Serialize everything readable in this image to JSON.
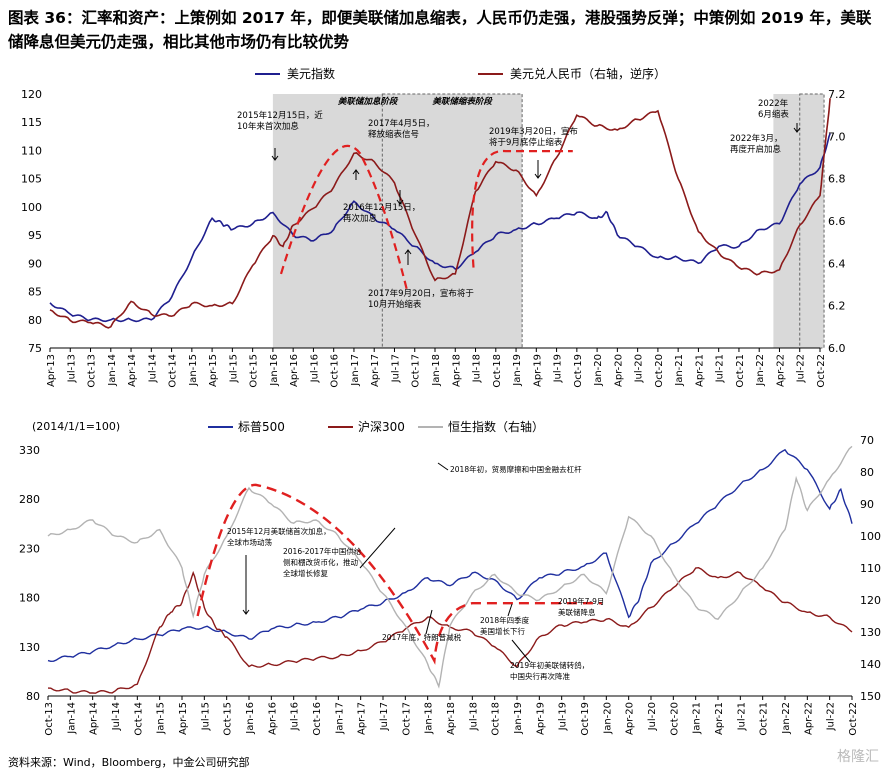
{
  "title": "图表 36：汇率和资产：上策例如 2017 年，即便美联储加息缩表，人民币仍走强，港股强势反弹；中策例如 2019 年，美联储降息但美元仍走强，相比其他市场仍有比较优势",
  "source": "资料来源：Wind，Bloomberg，中金公司研究部",
  "watermark": "格隆汇",
  "colors": {
    "usd": "#1f1f8f",
    "cny": "#8b1a1a",
    "spx": "#1f2f9f",
    "csi": "#8b1a1a",
    "hsi": "#b3b3b3",
    "dash": "#e02020",
    "shade": "#d9d9d9"
  },
  "chart_data": [
    {
      "type": "line",
      "legend": [
        "美元指数",
        "美元兑人民币（右轴，逆序）"
      ],
      "x_ticks": [
        "Apr-13",
        "Jul-13",
        "Oct-13",
        "Jan-14",
        "Apr-14",
        "Jul-14",
        "Oct-14",
        "Jan-15",
        "Apr-15",
        "Jul-15",
        "Oct-15",
        "Jan-16",
        "Apr-16",
        "Jul-16",
        "Oct-16",
        "Jan-17",
        "Apr-17",
        "Jul-17",
        "Oct-17",
        "Jan-18",
        "Apr-18",
        "Jul-18",
        "Oct-18",
        "Jan-19",
        "Apr-19",
        "Jul-19",
        "Oct-19",
        "Jan-20",
        "Apr-20",
        "Jul-20",
        "Oct-20",
        "Jan-21",
        "Apr-21",
        "Jul-21",
        "Oct-21",
        "Jan-22",
        "Apr-22",
        "Jul-22",
        "Oct-22"
      ],
      "ylim_left": [
        75,
        120
      ],
      "ylim_right": [
        7.2,
        6.0
      ],
      "y_ticks_left": [
        "120",
        "115",
        "110",
        "105",
        "100",
        "95",
        "90",
        "85",
        "80",
        "75"
      ],
      "y_ticks_right": [
        "6.0",
        "6.2",
        "6.4",
        "6.6",
        "6.8",
        "7.0",
        "7.2"
      ],
      "shade_labels": [
        "美联储加息阶段",
        "美联储缩表阶段"
      ],
      "annotations": [
        "2015年12月15日，近10年来首次加息",
        "2017年4月5日，释放缩表信号",
        "2016年12月15日，再次加息",
        "2017年9月20日，宣布将于10月开始缩表",
        "2019年3月20日，宣布将于9月底停止缩表",
        "2022年6月缩表",
        "2022年3月，再度开启加息"
      ],
      "series": [
        {
          "name": "美元指数",
          "axis": "left",
          "x": [
            0,
            1,
            2,
            3,
            4,
            5,
            6,
            7,
            8,
            8.5,
            9,
            10,
            11,
            12,
            13,
            14,
            15,
            16,
            17,
            18,
            19,
            20,
            21,
            22,
            23,
            24,
            25,
            26,
            27,
            27.5,
            28,
            29,
            30,
            31,
            32,
            33,
            34,
            35,
            36,
            37,
            38,
            38.5
          ],
          "values": [
            83,
            81,
            80,
            80,
            80,
            80,
            84,
            91,
            98,
            97,
            96,
            97,
            99,
            95,
            94,
            96,
            101,
            98,
            96,
            93,
            90,
            89,
            92,
            95,
            96,
            97,
            98,
            99,
            98,
            99,
            95,
            93,
            91,
            91,
            90,
            93,
            93,
            96,
            97,
            104,
            107,
            113
          ]
        },
        {
          "name": "美元兑人民币（右轴，逆序）",
          "axis": "right",
          "x": [
            0,
            1,
            2,
            3,
            4,
            5,
            6,
            7,
            8,
            9,
            10,
            11,
            11.5,
            12,
            13,
            14,
            15,
            16,
            17,
            18,
            19,
            20,
            21,
            22,
            23,
            24,
            25,
            26,
            27,
            28,
            29,
            30,
            31,
            32,
            33,
            34,
            35,
            36,
            37,
            38,
            38.5
          ],
          "values": [
            6.18,
            6.13,
            6.12,
            6.1,
            6.22,
            6.16,
            6.15,
            6.21,
            6.2,
            6.21,
            6.39,
            6.53,
            6.48,
            6.58,
            6.66,
            6.76,
            6.92,
            6.88,
            6.78,
            6.54,
            6.32,
            6.35,
            6.74,
            6.88,
            6.84,
            6.72,
            6.9,
            7.1,
            7.05,
            7.03,
            7.08,
            7.12,
            6.8,
            6.55,
            6.45,
            6.38,
            6.35,
            6.37,
            6.58,
            6.72,
            7.18
          ]
        }
      ]
    },
    {
      "type": "line",
      "note": "(2014/1/1=100)",
      "legend": [
        "标普500",
        "沪深300",
        "恒生指数（右轴）"
      ],
      "x_ticks": [
        "Oct-13",
        "Jan-14",
        "Apr-14",
        "Jul-14",
        "Oct-14",
        "Jan-15",
        "Apr-15",
        "Jul-15",
        "Oct-15",
        "Jan-16",
        "Apr-16",
        "Jul-16",
        "Oct-16",
        "Jan-17",
        "Apr-17",
        "Jul-17",
        "Oct-17",
        "Jan-18",
        "Apr-18",
        "Jul-18",
        "Oct-18",
        "Jan-19",
        "Apr-19",
        "Jul-19",
        "Oct-19",
        "Jan-20",
        "Apr-20",
        "Jul-20",
        "Oct-20",
        "Jan-21",
        "Apr-21",
        "Jul-21",
        "Oct-21",
        "Jan-22",
        "Apr-22",
        "Jul-22",
        "Oct-22"
      ],
      "ylim_left": [
        80,
        340
      ],
      "ylim_right": [
        70,
        150
      ],
      "y_ticks_left": [
        "330",
        "280",
        "230",
        "180",
        "130",
        "80"
      ],
      "y_ticks_right": [
        "150",
        "140",
        "130",
        "120",
        "110",
        "100",
        "90",
        "80",
        "70"
      ],
      "annotations": [
        "2015年12月美联储首次加息，全球市场动荡",
        "2016-2017年中国供给侧和棚改货币化，推动全球增长修复",
        "2018年初，贸易摩擦和中国金融去杠杆",
        "2017年底，特朗普减税",
        "2018年四季度美国增长下行",
        "2019年7-9月美联储降息",
        "2019年初美联储转鸽，中国央行再次降准"
      ],
      "series": [
        {
          "name": "标普500",
          "axis": "left",
          "x": [
            0,
            1,
            2,
            3,
            4,
            5,
            6,
            7,
            8,
            9,
            10,
            11,
            12,
            13,
            14,
            15,
            16,
            17,
            18,
            19,
            20,
            21,
            22,
            23,
            24,
            25,
            26,
            26.5,
            27,
            28,
            29,
            30,
            31,
            32,
            33,
            34,
            35,
            35.5,
            36
          ],
          "values": [
            116,
            120,
            125,
            132,
            138,
            142,
            148,
            150,
            145,
            138,
            148,
            152,
            155,
            160,
            168,
            175,
            185,
            200,
            192,
            205,
            198,
            178,
            200,
            205,
            212,
            225,
            160,
            180,
            215,
            235,
            255,
            275,
            295,
            310,
            330,
            310,
            270,
            290,
            255
          ]
        },
        {
          "name": "沪深300",
          "axis": "left",
          "x": [
            0,
            1,
            2,
            3,
            4,
            5,
            5.5,
            6,
            6.5,
            7,
            7.5,
            8,
            9,
            10,
            11,
            12,
            13,
            14,
            15,
            16,
            17,
            18,
            19,
            20,
            21,
            22,
            23,
            24,
            25,
            26,
            27,
            28,
            29,
            30,
            31,
            32,
            33,
            34,
            35,
            36
          ],
          "values": [
            88,
            85,
            83,
            85,
            92,
            150,
            165,
            175,
            205,
            170,
            150,
            140,
            110,
            112,
            115,
            118,
            120,
            126,
            135,
            148,
            160,
            150,
            145,
            130,
            110,
            140,
            152,
            155,
            158,
            150,
            170,
            190,
            210,
            200,
            205,
            190,
            175,
            165,
            160,
            145
          ]
        },
        {
          "name": "恒生指数（右轴）",
          "axis": "right",
          "x": [
            0,
            1,
            2,
            3,
            4,
            5,
            6,
            6.5,
            7,
            8,
            9,
            10,
            11,
            12,
            13,
            14,
            15,
            16,
            17,
            17.5,
            18,
            19,
            20,
            21,
            22,
            23,
            24,
            25,
            26,
            27,
            28,
            29,
            30,
            31,
            32,
            33,
            33.5,
            34,
            35,
            36
          ],
          "values": [
            100,
            98,
            95,
            100,
            102,
            98,
            110,
            125,
            112,
            100,
            85,
            90,
            96,
            95,
            100,
            108,
            118,
            128,
            140,
            147,
            128,
            118,
            112,
            118,
            120,
            116,
            112,
            118,
            94,
            100,
            112,
            122,
            126,
            118,
            110,
            98,
            82,
            92,
            82,
            72
          ]
        }
      ]
    }
  ]
}
